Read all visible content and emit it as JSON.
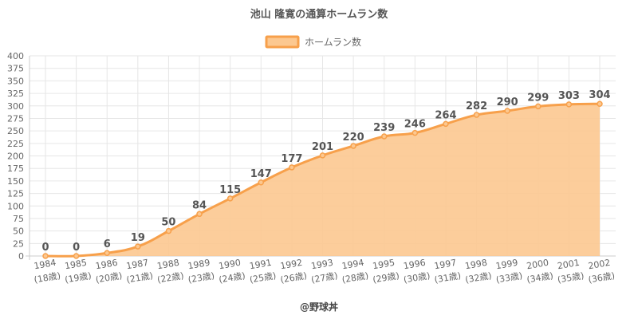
{
  "colors": {
    "line": "#f7a04b",
    "fill": "#fcc890",
    "grid": "#e6e6e6",
    "axis": "#cccccc"
  },
  "footer": "@野球丼",
  "chart_data": {
    "type": "area",
    "title": "池山 隆寛の通算ホームラン数",
    "legend": {
      "label": "ホームラン数",
      "position": "top"
    },
    "x": [
      "1984",
      "1985",
      "1986",
      "1987",
      "1988",
      "1989",
      "1990",
      "1991",
      "1992",
      "1993",
      "1994",
      "1995",
      "1996",
      "1997",
      "1998",
      "1999",
      "2000",
      "2001",
      "2002"
    ],
    "x_sublabels": [
      "(18歳)",
      "(19歳)",
      "(20歳)",
      "(21歳)",
      "(22歳)",
      "(23歳)",
      "(24歳)",
      "(25歳)",
      "(26歳)",
      "(27歳)",
      "(28歳)",
      "(29歳)",
      "(30歳)",
      "(31歳)",
      "(32歳)",
      "(33歳)",
      "(34歳)",
      "(35歳)",
      "(36歳)"
    ],
    "series": [
      {
        "name": "ホームラン数",
        "values": [
          0,
          0,
          6,
          19,
          50,
          84,
          115,
          147,
          177,
          201,
          220,
          239,
          246,
          264,
          282,
          290,
          299,
          303,
          304
        ]
      }
    ],
    "ylim": [
      0,
      400
    ],
    "yticks": [
      0,
      25,
      50,
      75,
      100,
      125,
      150,
      175,
      200,
      225,
      250,
      275,
      300,
      325,
      350,
      375,
      400
    ],
    "grid": true
  }
}
